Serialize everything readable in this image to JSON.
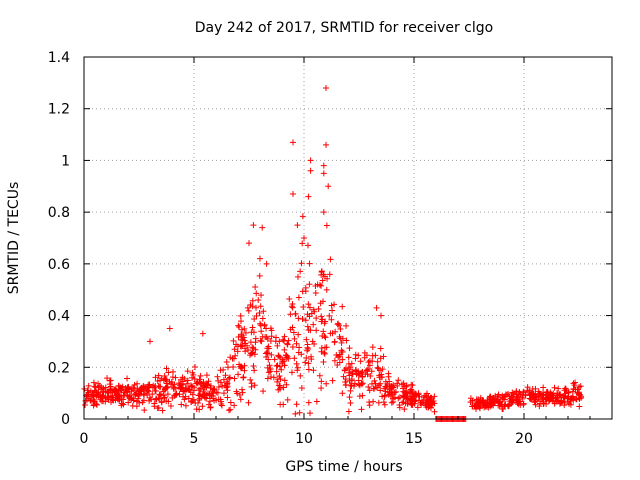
{
  "chart_data": {
    "type": "scatter",
    "title": "Day 242 of 2017, SRMTID for receiver clgo",
    "xlabel": "GPS time / hours",
    "ylabel": "SRMTID / TECUs",
    "xlim": [
      0,
      24
    ],
    "ylim": [
      0,
      1.4
    ],
    "x_ticks": [
      0,
      5,
      10,
      15,
      20
    ],
    "x_tick_labels": [
      "0",
      "5",
      "10",
      "15",
      "20"
    ],
    "y_ticks": [
      0,
      0.2,
      0.4,
      0.6,
      0.8,
      1,
      1.2,
      1.4
    ],
    "y_tick_labels": [
      "0",
      "0.2",
      "0.4",
      "0.6",
      "0.8",
      "1",
      "1.2",
      "1.4"
    ],
    "grid": true,
    "marker": "+",
    "series_color": "#ff0000",
    "envelope_hours": [
      0,
      1,
      2,
      3,
      4,
      5,
      6,
      6.8,
      7.5,
      8,
      8.5,
      9,
      9.6,
      10,
      10.5,
      11,
      11.5,
      12,
      12.5,
      13,
      13.5,
      14,
      15,
      15.5,
      16,
      16.3,
      17.6,
      18,
      19,
      20,
      21,
      22,
      22.6
    ],
    "envelope_median": [
      0.09,
      0.1,
      0.1,
      0.1,
      0.12,
      0.12,
      0.1,
      0.2,
      0.32,
      0.36,
      0.25,
      0.18,
      0.3,
      0.42,
      0.32,
      0.45,
      0.3,
      0.18,
      0.15,
      0.18,
      0.15,
      0.1,
      0.08,
      0.07,
      0.06,
      0.06,
      0.06,
      0.06,
      0.07,
      0.09,
      0.08,
      0.09,
      0.1
    ],
    "envelope_spread": [
      0.04,
      0.04,
      0.05,
      0.06,
      0.07,
      0.07,
      0.05,
      0.15,
      0.2,
      0.2,
      0.12,
      0.12,
      0.25,
      0.3,
      0.25,
      0.3,
      0.18,
      0.1,
      0.08,
      0.12,
      0.1,
      0.05,
      0.04,
      0.03,
      0.03,
      0.03,
      0.02,
      0.02,
      0.03,
      0.03,
      0.03,
      0.03,
      0.04
    ],
    "zero_cluster": {
      "x_range": [
        16.0,
        17.4
      ],
      "y": 0
    },
    "outliers": [
      {
        "x": 11.0,
        "y": 1.28
      },
      {
        "x": 9.5,
        "y": 1.07
      },
      {
        "x": 11.0,
        "y": 1.06
      },
      {
        "x": 10.3,
        "y": 1.0
      },
      {
        "x": 10.9,
        "y": 0.98
      },
      {
        "x": 10.3,
        "y": 0.96
      },
      {
        "x": 10.9,
        "y": 0.95
      },
      {
        "x": 11.1,
        "y": 0.9
      },
      {
        "x": 9.5,
        "y": 0.87
      },
      {
        "x": 10.2,
        "y": 0.86
      },
      {
        "x": 10.9,
        "y": 0.8
      },
      {
        "x": 7.7,
        "y": 0.75
      },
      {
        "x": 8.1,
        "y": 0.74
      },
      {
        "x": 9.7,
        "y": 0.75
      },
      {
        "x": 7.5,
        "y": 0.68
      },
      {
        "x": 3.9,
        "y": 0.35
      },
      {
        "x": 3.0,
        "y": 0.3
      },
      {
        "x": 5.4,
        "y": 0.33
      },
      {
        "x": 13.3,
        "y": 0.43
      },
      {
        "x": 13.5,
        "y": 0.4
      },
      {
        "x": 8.0,
        "y": 0.62
      },
      {
        "x": 8.3,
        "y": 0.6
      },
      {
        "x": 10.0,
        "y": 0.7
      }
    ]
  }
}
